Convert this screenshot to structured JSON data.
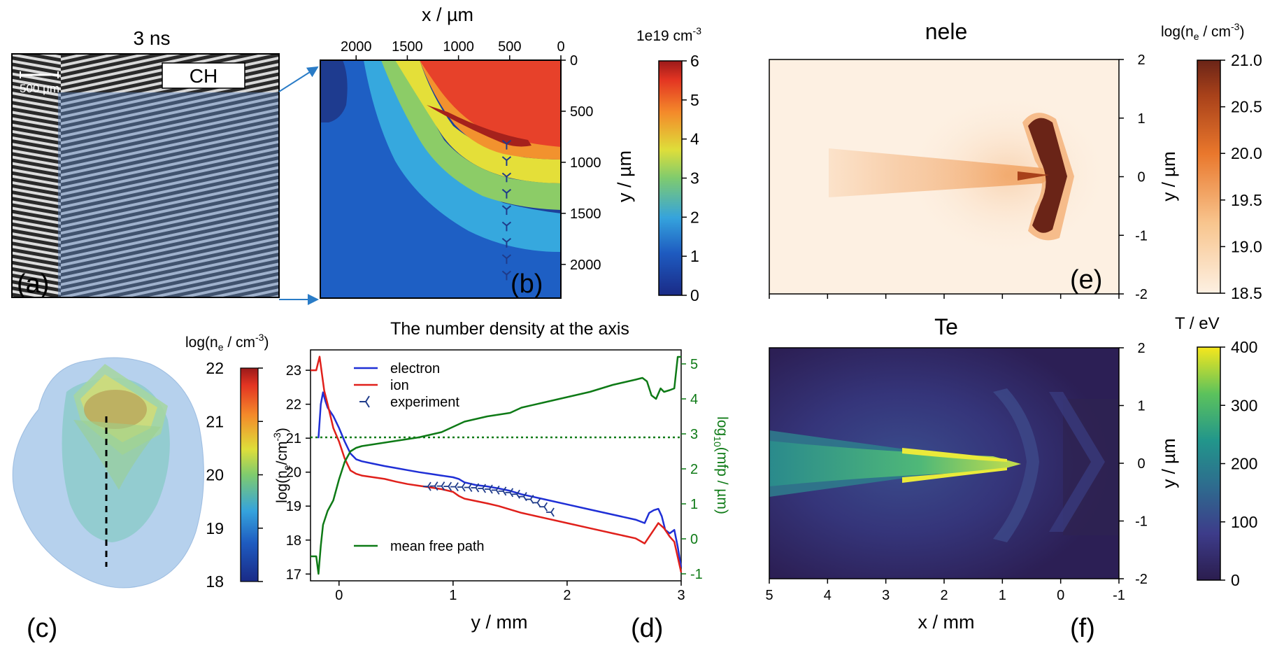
{
  "panel_a": {
    "letter": "(a)",
    "title": "3 ns",
    "scalebar_label": "500 µm",
    "material_label": "CH"
  },
  "panel_b": {
    "letter": "(b)",
    "xlabel": "x / µm",
    "ylabel": "y / µm",
    "xticks": [
      "2000",
      "1500",
      "1000",
      "500",
      "0"
    ],
    "xtick_values": [
      2000,
      1500,
      1000,
      500,
      0
    ],
    "xlim": [
      2350,
      0
    ],
    "yticks": [
      "0",
      "500",
      "1000",
      "1500",
      "2000"
    ],
    "ytick_values": [
      0,
      500,
      1000,
      1500,
      2000
    ],
    "ylim": [
      0,
      2330
    ],
    "colorbar_title": "1e19 cm",
    "colorbar_title_sup": "-3",
    "colorbar_ticks": [
      "0",
      "1",
      "2",
      "3",
      "4",
      "5",
      "6"
    ],
    "colorbar_tick_values": [
      0,
      1,
      2,
      3,
      4,
      5,
      6
    ],
    "marker_x_um": 530,
    "marker_y_um": [
      820,
      980,
      1140,
      1300,
      1460,
      1620,
      1780,
      1940,
      2100
    ]
  },
  "panel_c": {
    "letter": "(c)",
    "colorbar_title": "log(n",
    "colorbar_title_sub": "e",
    "colorbar_title_end": " / cm",
    "colorbar_title_sup": "-3",
    "colorbar_title_close": ")",
    "colorbar_ticks": [
      "18",
      "19",
      "20",
      "21",
      "22"
    ],
    "colorbar_tick_values": [
      18,
      19,
      20,
      21,
      22
    ]
  },
  "panel_d": {
    "letter": "(d)",
    "title": "The number density at the axis",
    "xlabel": "y / mm",
    "ylabel": "log(n",
    "ylabel_sub": "e",
    "ylabel_end": "/cm",
    "ylabel_sup": "-3",
    "ylabel_close": ")",
    "y2label": "log",
    "y2label_sub": "10",
    "y2label_end": "(mfp / µm)",
    "legend_electron": "electron",
    "legend_ion": "ion",
    "legend_experiment": "experiment",
    "legend_mfp": "mean free path",
    "xticks": [
      "0",
      "1",
      "2",
      "3"
    ],
    "yticks": [
      "17",
      "18",
      "19",
      "20",
      "21",
      "22",
      "23"
    ],
    "y2ticks": [
      "-1",
      "0",
      "1",
      "2",
      "3",
      "4",
      "5"
    ]
  },
  "panel_e": {
    "letter": "(e)",
    "title": "nele",
    "ylabel": "y / µm",
    "yticks": [
      "2",
      "1",
      "0",
      "-1",
      "-2"
    ],
    "colorbar_title": "log(n",
    "colorbar_title_sub": "e",
    "colorbar_title_end": " / cm",
    "colorbar_title_sup": "-3",
    "colorbar_title_close": ")",
    "colorbar_ticks": [
      "18.5",
      "19.0",
      "19.5",
      "20.0",
      "20.5",
      "21.0"
    ],
    "colorbar_tick_values": [
      18.5,
      19.0,
      19.5,
      20.0,
      20.5,
      21.0
    ]
  },
  "panel_f": {
    "letter": "(f)",
    "title": "Te",
    "xlabel": "x / mm",
    "ylabel": "y / µm",
    "xticks": [
      "5",
      "4",
      "3",
      "2",
      "1",
      "0",
      "-1"
    ],
    "yticks": [
      "2",
      "1",
      "0",
      "-1",
      "-2"
    ],
    "colorbar_title": "T / eV",
    "colorbar_ticks": [
      "0",
      "100",
      "200",
      "300",
      "400"
    ],
    "colorbar_tick_values": [
      0,
      100,
      200,
      300,
      400
    ]
  },
  "chart_data": [
    {
      "type": "line",
      "title": "The number density at the axis",
      "xlabel": "y / mm",
      "ylabel": "log(ne/cm-3)",
      "y2label": "log10(mfp / µm)",
      "xlim": [
        -0.25,
        3.0
      ],
      "ylim": [
        16.8,
        23.6
      ],
      "y2lim": [
        -1.2,
        5.4
      ],
      "series": [
        {
          "name": "electron",
          "color": "#1f2fd6",
          "axis": "left",
          "x": [
            -0.18,
            -0.16,
            -0.14,
            -0.12,
            -0.1,
            -0.05,
            0,
            0.05,
            0.1,
            0.15,
            0.2,
            0.3,
            0.4,
            0.5,
            0.6,
            0.7,
            0.8,
            0.9,
            1.0,
            1.05,
            1.1,
            1.2,
            1.3,
            1.4,
            1.5,
            1.6,
            1.8,
            2.0,
            2.2,
            2.4,
            2.6,
            2.68,
            2.72,
            2.76,
            2.8,
            2.83,
            2.86,
            2.9,
            2.94,
            2.97,
            3.0
          ],
          "y": [
            21.0,
            22.0,
            22.35,
            22.1,
            21.9,
            21.65,
            21.3,
            20.9,
            20.55,
            20.38,
            20.32,
            20.25,
            20.18,
            20.12,
            20.06,
            20.0,
            19.95,
            19.9,
            19.85,
            19.8,
            19.7,
            19.62,
            19.58,
            19.52,
            19.45,
            19.35,
            19.2,
            19.05,
            18.9,
            18.75,
            18.6,
            18.5,
            18.8,
            18.88,
            18.92,
            18.7,
            18.3,
            18.2,
            18.3,
            17.8,
            17.2
          ]
        },
        {
          "name": "ion",
          "color": "#e0201b",
          "axis": "left",
          "x": [
            -0.25,
            -0.2,
            -0.17,
            -0.15,
            -0.13,
            -0.1,
            -0.05,
            0,
            0.05,
            0.1,
            0.15,
            0.2,
            0.3,
            0.4,
            0.5,
            0.6,
            0.7,
            0.8,
            0.9,
            1.0,
            1.05,
            1.1,
            1.2,
            1.3,
            1.4,
            1.5,
            1.6,
            1.8,
            2.0,
            2.2,
            2.4,
            2.6,
            2.68,
            2.72,
            2.76,
            2.8,
            2.85,
            2.9,
            2.94,
            2.97,
            3.0
          ],
          "y": [
            23.0,
            23.0,
            23.4,
            22.9,
            22.4,
            22.0,
            21.3,
            20.9,
            20.4,
            20.05,
            19.95,
            19.9,
            19.85,
            19.8,
            19.72,
            19.65,
            19.6,
            19.55,
            19.5,
            19.42,
            19.3,
            19.22,
            19.15,
            19.08,
            19.0,
            18.9,
            18.8,
            18.65,
            18.5,
            18.35,
            18.2,
            18.05,
            17.9,
            18.1,
            18.3,
            18.5,
            18.35,
            18.1,
            17.95,
            17.5,
            17.05
          ]
        },
        {
          "name": "experiment",
          "color": "#1f2fd6",
          "axis": "left",
          "marker": "tri_left",
          "x": [
            0.78,
            0.84,
            0.9,
            0.96,
            1.02,
            1.08,
            1.14,
            1.2,
            1.26,
            1.32,
            1.38,
            1.44,
            1.5,
            1.56,
            1.62,
            1.68,
            1.74,
            1.8,
            1.86
          ],
          "y": [
            19.58,
            19.59,
            19.59,
            19.58,
            19.57,
            19.56,
            19.55,
            19.54,
            19.52,
            19.5,
            19.47,
            19.44,
            19.4,
            19.35,
            19.28,
            19.2,
            19.1,
            18.98,
            18.82
          ]
        },
        {
          "name": "mean free path",
          "color": "#0e7a16",
          "axis": "right",
          "x": [
            -0.25,
            -0.2,
            -0.18,
            -0.16,
            -0.14,
            -0.1,
            -0.05,
            0,
            0.05,
            0.1,
            0.15,
            0.2,
            0.3,
            0.5,
            0.7,
            0.9,
            1.0,
            1.1,
            1.3,
            1.5,
            1.6,
            1.8,
            2.0,
            2.2,
            2.4,
            2.6,
            2.66,
            2.7,
            2.74,
            2.78,
            2.82,
            2.85,
            2.9,
            2.94,
            2.97,
            3.0
          ],
          "y": [
            -0.5,
            -0.5,
            -1.0,
            -0.2,
            0.4,
            0.8,
            1.1,
            1.7,
            2.2,
            2.5,
            2.6,
            2.65,
            2.7,
            2.8,
            2.9,
            3.05,
            3.2,
            3.35,
            3.5,
            3.6,
            3.75,
            3.9,
            4.05,
            4.2,
            4.4,
            4.55,
            4.6,
            4.5,
            4.1,
            4.0,
            4.3,
            4.2,
            4.25,
            4.3,
            5.2,
            5.2
          ]
        }
      ],
      "reference_lines": [
        {
          "axis": "right",
          "y": 2.9,
          "style": "dotted",
          "color": "#0e7a16"
        }
      ]
    }
  ],
  "colors": {
    "experiment_marker": "#1f3b8a",
    "arrow": "#2a7cc7",
    "green": "#0e7a16"
  }
}
